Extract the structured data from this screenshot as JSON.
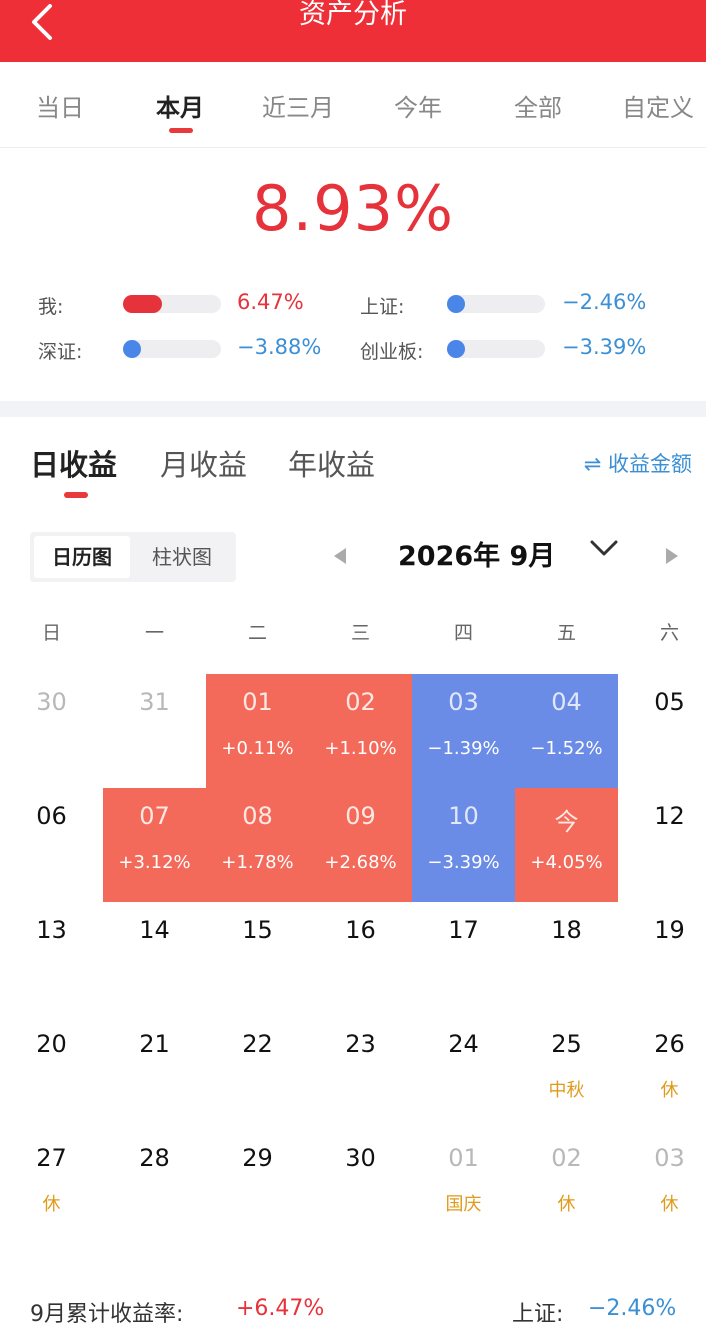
{
  "header": {
    "title": "资产分析"
  },
  "period_tabs": [
    {
      "label": "当日",
      "active": false
    },
    {
      "label": "本月",
      "active": true
    },
    {
      "label": "近三月",
      "active": false
    },
    {
      "label": "今年",
      "active": false
    },
    {
      "label": "全部",
      "active": false
    },
    {
      "label": "自定义",
      "active": false
    }
  ],
  "summary": {
    "total_pct": "8.93%",
    "comparisons": [
      {
        "label": "我:",
        "value": "6.47%",
        "level": 0.4,
        "color": "#e6323a"
      },
      {
        "label": "上证:",
        "value": "−2.46%",
        "level": 0.1,
        "color": "#4a86e8"
      },
      {
        "label": "深证:",
        "value": "−3.88%",
        "level": 0.12,
        "color": "#4a86e8"
      },
      {
        "label": "创业板:",
        "value": "−3.39%",
        "level": 0.12,
        "color": "#4a86e8"
      }
    ]
  },
  "earnings_tabs": [
    {
      "label": "日收益",
      "active": true
    },
    {
      "label": "月收益",
      "active": false
    },
    {
      "label": "年收益",
      "active": false
    }
  ],
  "amount_link": "⇌ 收益金额",
  "view_toggle": {
    "calendar": "日历图",
    "bar": "柱状图"
  },
  "month": {
    "label": "2026年 9月"
  },
  "weekdays": [
    "日",
    "一",
    "二",
    "三",
    "四",
    "五",
    "六"
  ],
  "calendar": [
    [
      {
        "day": "30",
        "other": true
      },
      {
        "day": "31",
        "other": true
      },
      {
        "day": "01",
        "pct": "+0.11%",
        "trend": "up"
      },
      {
        "day": "02",
        "pct": "+1.10%",
        "trend": "up"
      },
      {
        "day": "03",
        "pct": "−1.39%",
        "trend": "down"
      },
      {
        "day": "04",
        "pct": "−1.52%",
        "trend": "down"
      },
      {
        "day": "05"
      }
    ],
    [
      {
        "day": "06"
      },
      {
        "day": "07",
        "pct": "+3.12%",
        "trend": "up"
      },
      {
        "day": "08",
        "pct": "+1.78%",
        "trend": "up"
      },
      {
        "day": "09",
        "pct": "+2.68%",
        "trend": "up"
      },
      {
        "day": "10",
        "pct": "−3.39%",
        "trend": "down"
      },
      {
        "day": "今",
        "pct": "+4.05%",
        "trend": "up"
      },
      {
        "day": "12"
      }
    ],
    [
      {
        "day": "13"
      },
      {
        "day": "14"
      },
      {
        "day": "15"
      },
      {
        "day": "16"
      },
      {
        "day": "17"
      },
      {
        "day": "18"
      },
      {
        "day": "19"
      }
    ],
    [
      {
        "day": "20"
      },
      {
        "day": "21"
      },
      {
        "day": "22"
      },
      {
        "day": "23"
      },
      {
        "day": "24"
      },
      {
        "day": "25",
        "note": "中秋"
      },
      {
        "day": "26",
        "note": "休"
      }
    ],
    [
      {
        "day": "27",
        "note": "休"
      },
      {
        "day": "28"
      },
      {
        "day": "29"
      },
      {
        "day": "30"
      },
      {
        "day": "01",
        "other": true,
        "note": "国庆"
      },
      {
        "day": "02",
        "other": true,
        "note": "休"
      },
      {
        "day": "03",
        "other": true,
        "note": "休"
      }
    ]
  ],
  "footer": {
    "label": "9月累计收益率:",
    "value": "+6.47%",
    "index_label": "上证:",
    "index_value": "−2.46%"
  }
}
